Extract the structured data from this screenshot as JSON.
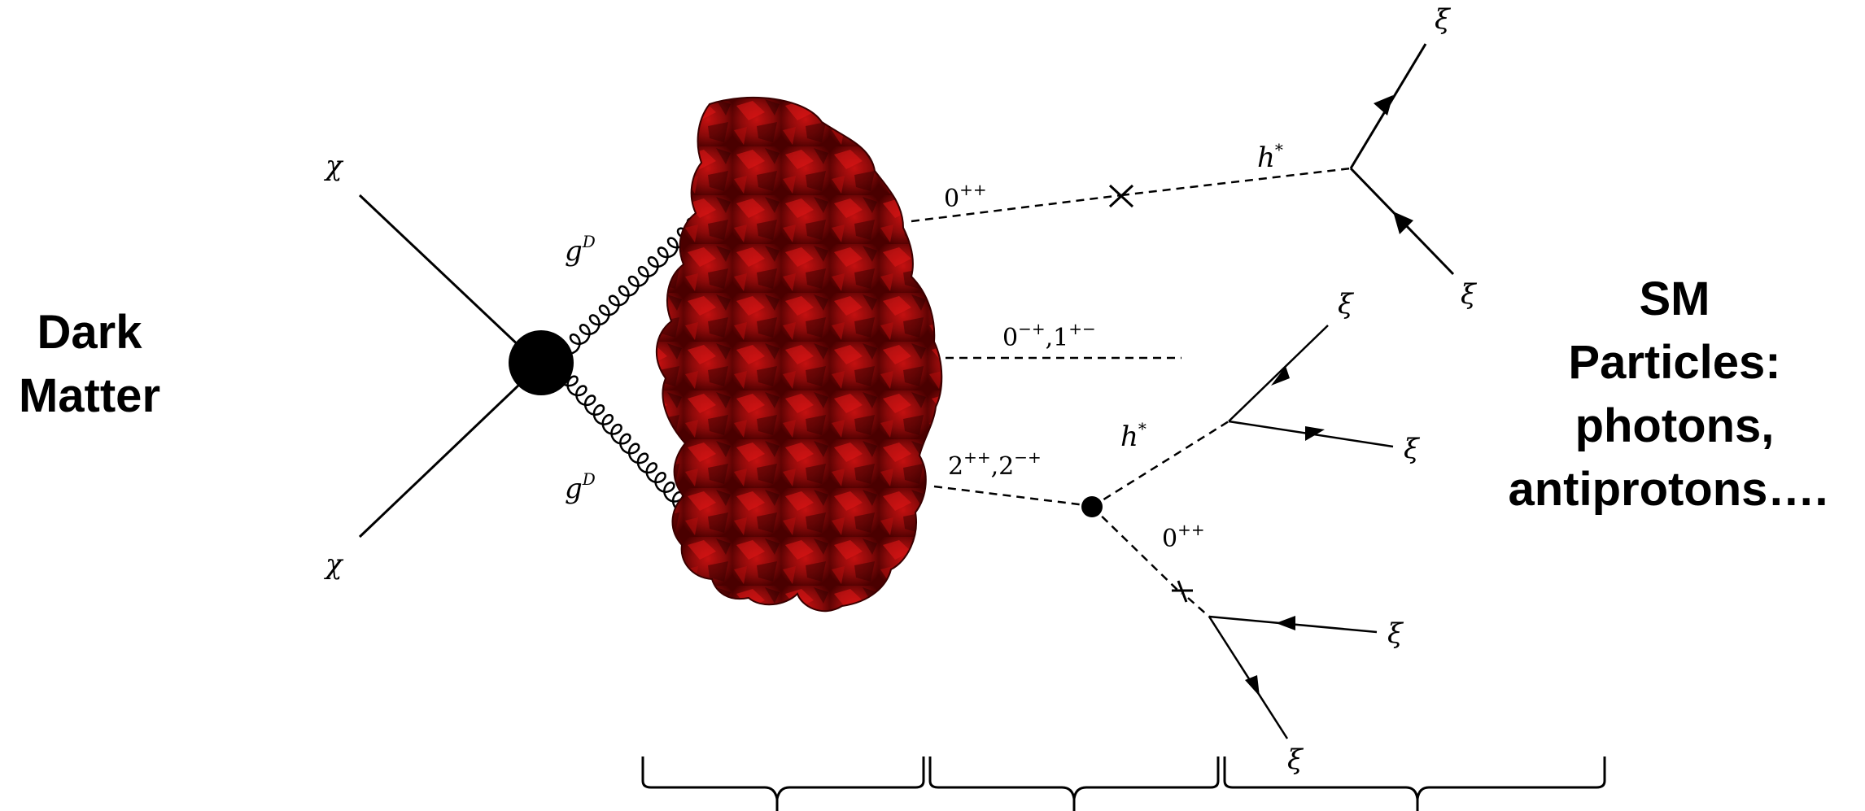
{
  "left_block": {
    "line1": "Dark",
    "line2": "Matter"
  },
  "right_block": {
    "line1": "SM",
    "line2": "Particles:",
    "line3": "photons,",
    "line4": "antiprotons…."
  },
  "labels": {
    "chi": "χ",
    "g": "g",
    "g_sup": "D",
    "xi": "ξ",
    "h": "h",
    "h_sup": "*",
    "zero": "0",
    "pp": "++",
    "mp": "−+",
    "pm": "+−",
    "one": "1",
    "two": "2",
    "comma": ","
  },
  "colors": {
    "blob_dark": "#5a0000",
    "blob_mid": "#8b0a0a",
    "blob_light": "#d01010",
    "ink": "#000000"
  }
}
